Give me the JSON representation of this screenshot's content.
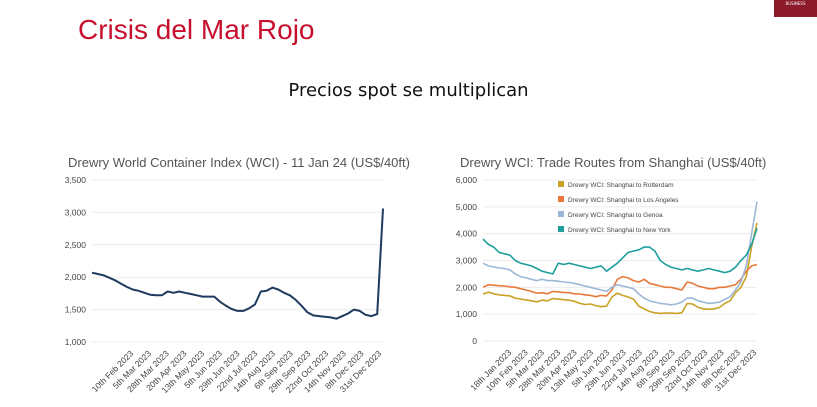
{
  "slide": {
    "title": "Crisis del Mar Rojo",
    "subtitle": "Precios spot se multiplican",
    "badge": "BUSINESS"
  },
  "chart_data": [
    {
      "type": "line",
      "title": "Drewry World Container Index (WCI) - 11 Jan 24 (US$/40ft)",
      "xlabel": "",
      "ylabel": "",
      "ylim": [
        1000,
        3500
      ],
      "yticks": [
        "1,000",
        "1,500",
        "2,000",
        "2,500",
        "3,000",
        "3,500"
      ],
      "grid": true,
      "x_tick_labels": [
        "10th Feb 2023",
        "5th Mar 2023",
        "28th Mar 2023",
        "20th Apr 2023",
        "13th May 2023",
        "5th Jun 2023",
        "29th Jun 2023",
        "22nd Jul 2023",
        "14th Aug 2023",
        "6th Sep 2023",
        "29th Sep 2023",
        "22nd Oct 2023",
        "14th Nov 2023",
        "8th Dec 2023",
        "31st Dec 2023"
      ],
      "x": [
        0,
        1,
        2,
        3,
        4,
        5,
        6,
        7,
        8,
        9,
        10,
        11,
        12,
        13,
        14,
        15,
        16,
        17,
        18,
        19,
        20,
        21,
        22,
        23,
        24,
        25,
        26,
        27,
        28,
        29,
        30,
        31,
        32,
        33,
        34,
        35,
        36,
        37,
        38,
        39,
        40,
        41,
        42,
        43,
        44,
        45,
        46,
        47,
        48,
        49,
        50
      ],
      "series": [
        {
          "name": "",
          "color": "#1f3a5f",
          "values": [
            2070,
            2050,
            2030,
            1990,
            1950,
            1900,
            1850,
            1810,
            1790,
            1760,
            1730,
            1720,
            1720,
            1780,
            1760,
            1780,
            1760,
            1740,
            1720,
            1700,
            1700,
            1700,
            1620,
            1560,
            1510,
            1480,
            1480,
            1520,
            1580,
            1780,
            1790,
            1840,
            1810,
            1760,
            1720,
            1650,
            1560,
            1460,
            1410,
            1400,
            1390,
            1380,
            1360,
            1400,
            1440,
            1500,
            1480,
            1420,
            1400,
            1430,
            3060
          ]
        }
      ]
    },
    {
      "type": "line",
      "title": "Drewry WCI: Trade Routes from Shanghai (US$/40ft)",
      "xlabel": "",
      "ylabel": "",
      "ylim": [
        0,
        6000
      ],
      "yticks": [
        "0",
        "1,000",
        "2,000",
        "3,000",
        "4,000",
        "5,000",
        "6,000"
      ],
      "grid": true,
      "legend": "top-left",
      "x_tick_labels": [
        "18th Jan 2023",
        "10th Feb 2023",
        "5th Mar 2023",
        "28th Mar 2023",
        "20th Apr 2023",
        "13th May 2023",
        "5th Jun 2023",
        "29th Jun 2023",
        "22nd Jul 2023",
        "14th Aug 2023",
        "6th Sep 2023",
        "29th Sep 2023",
        "22nd Oct 2023",
        "14th Nov 2023",
        "8th Dec 2023",
        "31st Dec 2023"
      ],
      "x": [
        0,
        1,
        2,
        3,
        4,
        5,
        6,
        7,
        8,
        9,
        10,
        11,
        12,
        13,
        14,
        15,
        16,
        17,
        18,
        19,
        20,
        21,
        22,
        23,
        24,
        25,
        26,
        27,
        28,
        29,
        30,
        31,
        32,
        33,
        34,
        35,
        36,
        37,
        38,
        39,
        40,
        41,
        42,
        43,
        44,
        45,
        46,
        47,
        48,
        49,
        50,
        51
      ],
      "series": [
        {
          "name": "Drewry WCI: Shanghai to Rotterdam",
          "color": "#c9a227",
          "values": [
            1750,
            1820,
            1760,
            1720,
            1700,
            1680,
            1600,
            1560,
            1530,
            1500,
            1460,
            1520,
            1500,
            1580,
            1560,
            1540,
            1520,
            1480,
            1400,
            1360,
            1380,
            1320,
            1280,
            1300,
            1640,
            1780,
            1700,
            1640,
            1560,
            1300,
            1200,
            1100,
            1050,
            1030,
            1040,
            1040,
            1030,
            1050,
            1400,
            1380,
            1260,
            1200,
            1180,
            1200,
            1250,
            1400,
            1500,
            1800,
            2000,
            2400,
            3500,
            4400
          ]
        },
        {
          "name": "Drewry WCI: Shanghai to Los Angeles",
          "color": "#e8793a",
          "values": [
            2000,
            2100,
            2080,
            2060,
            2050,
            2020,
            2000,
            1950,
            1900,
            1850,
            1780,
            1800,
            1760,
            1850,
            1830,
            1810,
            1800,
            1760,
            1750,
            1720,
            1700,
            1650,
            1700,
            1680,
            1900,
            2300,
            2400,
            2350,
            2250,
            2200,
            2300,
            2150,
            2100,
            2050,
            2000,
            2000,
            1950,
            1900,
            2200,
            2150,
            2050,
            2000,
            1950,
            1950,
            2000,
            2000,
            2050,
            2100,
            2300,
            2600,
            2800,
            2850
          ]
        },
        {
          "name": "Drewry WCI: Shanghai to Genoa",
          "color": "#9cb8d6",
          "values": [
            2900,
            2800,
            2760,
            2720,
            2700,
            2650,
            2500,
            2400,
            2350,
            2300,
            2250,
            2300,
            2250,
            2250,
            2230,
            2200,
            2180,
            2150,
            2100,
            2050,
            2000,
            1950,
            1900,
            1850,
            2000,
            2100,
            2050,
            2000,
            1950,
            1750,
            1600,
            1500,
            1450,
            1400,
            1380,
            1350,
            1380,
            1450,
            1600,
            1600,
            1500,
            1450,
            1400,
            1420,
            1450,
            1550,
            1650,
            1900,
            2200,
            2800,
            4000,
            5200
          ]
        },
        {
          "name": "Drewry WCI: Shanghai to New York",
          "color": "#1f9e9e",
          "values": [
            3800,
            3600,
            3500,
            3300,
            3250,
            3200,
            3000,
            2900,
            2850,
            2800,
            2700,
            2600,
            2550,
            2500,
            2900,
            2850,
            2900,
            2850,
            2800,
            2750,
            2700,
            2750,
            2800,
            2600,
            2750,
            2900,
            3100,
            3300,
            3350,
            3400,
            3500,
            3500,
            3350,
            3000,
            2850,
            2750,
            2700,
            2650,
            2700,
            2650,
            2600,
            2650,
            2700,
            2650,
            2600,
            2550,
            2600,
            2750,
            3000,
            3200,
            3600,
            4200
          ]
        }
      ]
    }
  ]
}
